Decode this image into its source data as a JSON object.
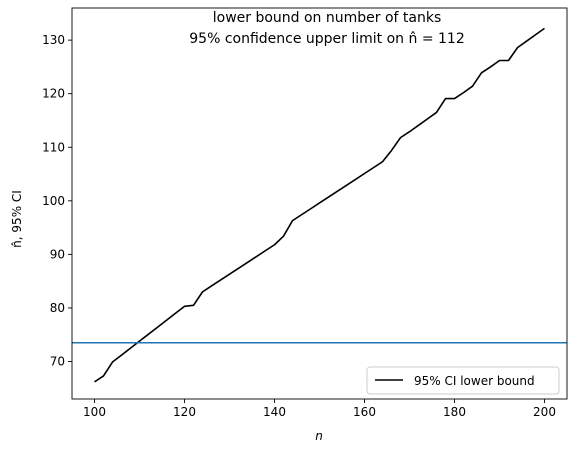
{
  "chart_data": {
    "type": "line",
    "title": "lower bound on number of tanks",
    "subtitle": "95% confidence upper limit on n̂ = 112",
    "xlabel": "n",
    "ylabel": "n̂, 95% CI",
    "xlim": [
      95,
      205
    ],
    "ylim": [
      63,
      136
    ],
    "xticks": [
      100,
      120,
      140,
      160,
      180,
      200
    ],
    "yticks": [
      70,
      80,
      90,
      100,
      110,
      120,
      130
    ],
    "grid": false,
    "legend_position": "lower right",
    "series": [
      {
        "name": "95% CI lower bound",
        "color": "#000000",
        "x": [
          100,
          102,
          104,
          106,
          108,
          110,
          112,
          114,
          116,
          118,
          120,
          122,
          124,
          126,
          128,
          130,
          132,
          134,
          136,
          138,
          140,
          142,
          144,
          146,
          148,
          150,
          152,
          154,
          156,
          158,
          160,
          162,
          164,
          166,
          168,
          170,
          172,
          174,
          176,
          178,
          180,
          182,
          184,
          186,
          188,
          190,
          192,
          194,
          196,
          198,
          200
        ],
        "y": [
          66.2,
          67.3,
          69.9,
          71.2,
          72.5,
          73.8,
          75.1,
          76.4,
          77.7,
          79.0,
          80.3,
          80.5,
          83.0,
          84.1,
          85.2,
          86.3,
          87.4,
          88.5,
          89.6,
          90.7,
          91.8,
          93.4,
          96.3,
          97.4,
          98.5,
          99.6,
          100.7,
          101.8,
          102.9,
          104.0,
          105.1,
          106.2,
          107.3,
          109.4,
          111.8,
          112.9,
          114.1,
          115.3,
          116.5,
          119.1,
          119.1,
          120.2,
          121.4,
          123.9,
          125.0,
          126.2,
          126.2,
          128.6,
          129.8,
          131.0,
          132.2
        ]
      },
      {
        "name": "",
        "color": "#1f77b4",
        "type": "hline",
        "y": 73.5
      }
    ]
  }
}
